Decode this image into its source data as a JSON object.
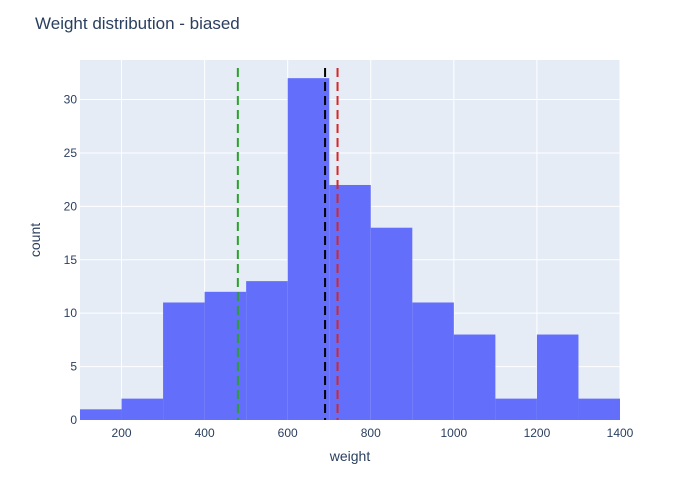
{
  "chart_data": {
    "type": "bar",
    "title": "Weight distribution - biased",
    "xlabel": "weight",
    "ylabel": "count",
    "xlim": [
      100,
      1400
    ],
    "ylim": [
      0,
      33.7
    ],
    "x_ticks": [
      200,
      400,
      600,
      800,
      1000,
      1200,
      1400
    ],
    "y_ticks": [
      0,
      5,
      10,
      15,
      20,
      25,
      30
    ],
    "grid": true,
    "bins": [
      {
        "start": 100,
        "end": 200,
        "count": 1
      },
      {
        "start": 200,
        "end": 300,
        "count": 2
      },
      {
        "start": 300,
        "end": 400,
        "count": 11
      },
      {
        "start": 400,
        "end": 500,
        "count": 12
      },
      {
        "start": 500,
        "end": 600,
        "count": 13
      },
      {
        "start": 600,
        "end": 700,
        "count": 32
      },
      {
        "start": 700,
        "end": 800,
        "count": 22
      },
      {
        "start": 800,
        "end": 900,
        "count": 18
      },
      {
        "start": 900,
        "end": 1000,
        "count": 11
      },
      {
        "start": 1000,
        "end": 1100,
        "count": 8
      },
      {
        "start": 1100,
        "end": 1200,
        "count": 2
      },
      {
        "start": 1200,
        "end": 1300,
        "count": 8
      },
      {
        "start": 1300,
        "end": 1400,
        "count": 2
      }
    ],
    "bar_color": "#636efa",
    "plot_bg": "#e5ecf6",
    "vertical_lines": [
      {
        "x": 480,
        "color": "#2ca02c",
        "style": "dashed"
      },
      {
        "x": 690,
        "color": "#000000",
        "style": "dashed"
      },
      {
        "x": 720,
        "color": "#d62728",
        "style": "dashed"
      }
    ]
  }
}
